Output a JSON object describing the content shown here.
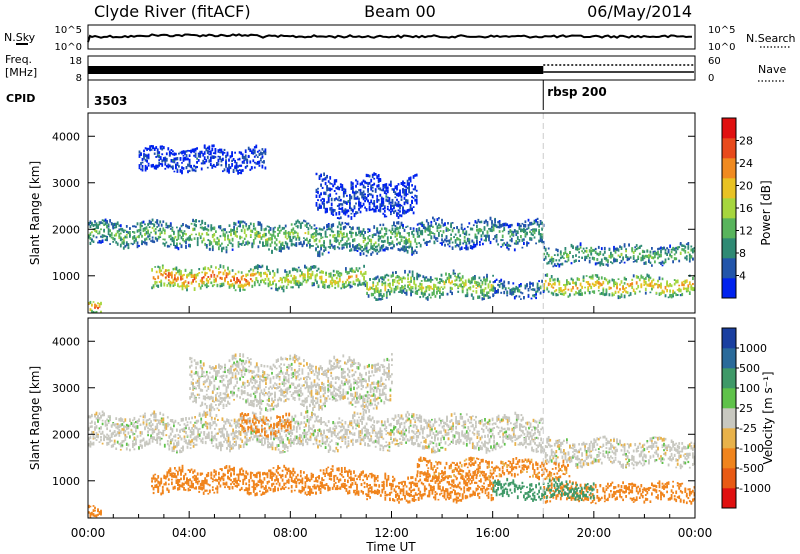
{
  "header": {
    "station": "Clyde River (fitACF)",
    "beam": "Beam 00",
    "date": "06/May/2014"
  },
  "strip": {
    "nsky_label": "N.Sky",
    "nsearch_label": "N.Search",
    "noise_ticks": [
      "10^5",
      "10^0"
    ],
    "freq_label_1": "Freq.",
    "freq_label_2": "[MHz]",
    "freq_ticks": [
      "18",
      "8"
    ],
    "nave_label": "Nave",
    "nave_ticks": [
      "60",
      "0"
    ],
    "cpid_label": "CPID",
    "cpid_1": "3503",
    "cpid_2": "rbsp 200",
    "cpid_switch_time": 18.0
  },
  "panel_power": {
    "ylabel": "Slant Range [km]",
    "cbar_label": "Power [dB]",
    "cbar_ticks": [
      "28",
      "24",
      "20",
      "16",
      "12",
      "8",
      "4"
    ],
    "cbar_colors": [
      "#0022ee",
      "#2255aa",
      "#2f8a74",
      "#58b45c",
      "#a6d63e",
      "#e8c224",
      "#f08a20",
      "#e84a1c",
      "#e01010"
    ]
  },
  "panel_velocity": {
    "ylabel": "Slant Range [km]",
    "cbar_label": "Velocity [m s⁻¹]",
    "cbar_ticks": [
      "1000",
      "500",
      "100",
      "25",
      "-25",
      "-100",
      "-500",
      "-1000"
    ],
    "cbar_colors": [
      "#1a3fa0",
      "#2a6a9a",
      "#3f9968",
      "#5fc24a",
      "#c8c8c0",
      "#e8b24a",
      "#f0841c",
      "#e85a14",
      "#e01010"
    ]
  },
  "xaxis": {
    "title": "Time UT",
    "ticks": [
      "00:00",
      "04:00",
      "08:00",
      "12:00",
      "16:00",
      "20:00",
      "00:00"
    ]
  },
  "chart_data": [
    {
      "type": "heatmap",
      "title": "Power",
      "x_unit": "hours UT",
      "xlim": [
        0,
        24
      ],
      "ylim": [
        200,
        4500
      ],
      "y_ticks": [
        1000,
        2000,
        3000,
        4000
      ],
      "bands": [
        {
          "t0": 0.0,
          "t1": 4.0,
          "center_km": 1900,
          "half_width_km": 260,
          "power_db": 14
        },
        {
          "t0": 4.0,
          "t1": 9.0,
          "center_km": 1850,
          "half_width_km": 280,
          "power_db": 16
        },
        {
          "t0": 9.0,
          "t1": 13.0,
          "center_km": 1800,
          "half_width_km": 300,
          "power_db": 14
        },
        {
          "t0": 13.0,
          "t1": 18.0,
          "center_km": 1900,
          "half_width_km": 280,
          "power_db": 12
        },
        {
          "t0": 18.0,
          "t1": 24.0,
          "center_km": 1450,
          "half_width_km": 200,
          "power_db": 14
        },
        {
          "t0": 2.5,
          "t1": 6.5,
          "center_km": 950,
          "half_width_km": 220,
          "power_db": 26
        },
        {
          "t0": 6.5,
          "t1": 11.0,
          "center_km": 950,
          "half_width_km": 220,
          "power_db": 20
        },
        {
          "t0": 11.0,
          "t1": 16.0,
          "center_km": 800,
          "half_width_km": 250,
          "power_db": 18
        },
        {
          "t0": 16.0,
          "t1": 18.0,
          "center_km": 700,
          "half_width_km": 180,
          "power_db": 10
        },
        {
          "t0": 18.0,
          "t1": 24.0,
          "center_km": 780,
          "half_width_km": 200,
          "power_db": 22
        },
        {
          "t0": 0.0,
          "t1": 0.5,
          "center_km": 350,
          "half_width_km": 120,
          "power_db": 28
        },
        {
          "t0": 9.0,
          "t1": 13.0,
          "center_km": 2700,
          "half_width_km": 400,
          "power_db": 6
        },
        {
          "t0": 2.0,
          "t1": 7.0,
          "center_km": 3500,
          "half_width_km": 250,
          "power_db": 6
        }
      ]
    },
    {
      "type": "heatmap",
      "title": "Velocity",
      "x_unit": "hours UT",
      "xlim": [
        0,
        24
      ],
      "ylim": [
        200,
        4500
      ],
      "y_ticks": [
        1000,
        2000,
        3000,
        4000
      ],
      "bands": [
        {
          "t0": 0.0,
          "t1": 18.0,
          "center_km": 2050,
          "half_width_km": 350,
          "velocity": 0
        },
        {
          "t0": 18.0,
          "t1": 24.0,
          "center_km": 1600,
          "half_width_km": 280,
          "velocity": 0
        },
        {
          "t0": 4.0,
          "t1": 12.0,
          "center_km": 3100,
          "half_width_km": 500,
          "velocity": 0
        },
        {
          "t0": 2.5,
          "t1": 11.0,
          "center_km": 1000,
          "half_width_km": 250,
          "velocity": -300
        },
        {
          "t0": 11.0,
          "t1": 16.0,
          "center_km": 850,
          "half_width_km": 280,
          "velocity": -300
        },
        {
          "t0": 13.0,
          "t1": 19.0,
          "center_km": 1250,
          "half_width_km": 200,
          "velocity": -120
        },
        {
          "t0": 18.0,
          "t1": 24.0,
          "center_km": 750,
          "half_width_km": 200,
          "velocity": -400
        },
        {
          "t0": 16.0,
          "t1": 20.0,
          "center_km": 800,
          "half_width_km": 180,
          "velocity": 150
        },
        {
          "t0": 6.0,
          "t1": 8.0,
          "center_km": 2200,
          "half_width_km": 200,
          "velocity": -300
        },
        {
          "t0": 0.0,
          "t1": 0.5,
          "center_km": 350,
          "half_width_km": 120,
          "velocity": -400
        }
      ]
    }
  ]
}
